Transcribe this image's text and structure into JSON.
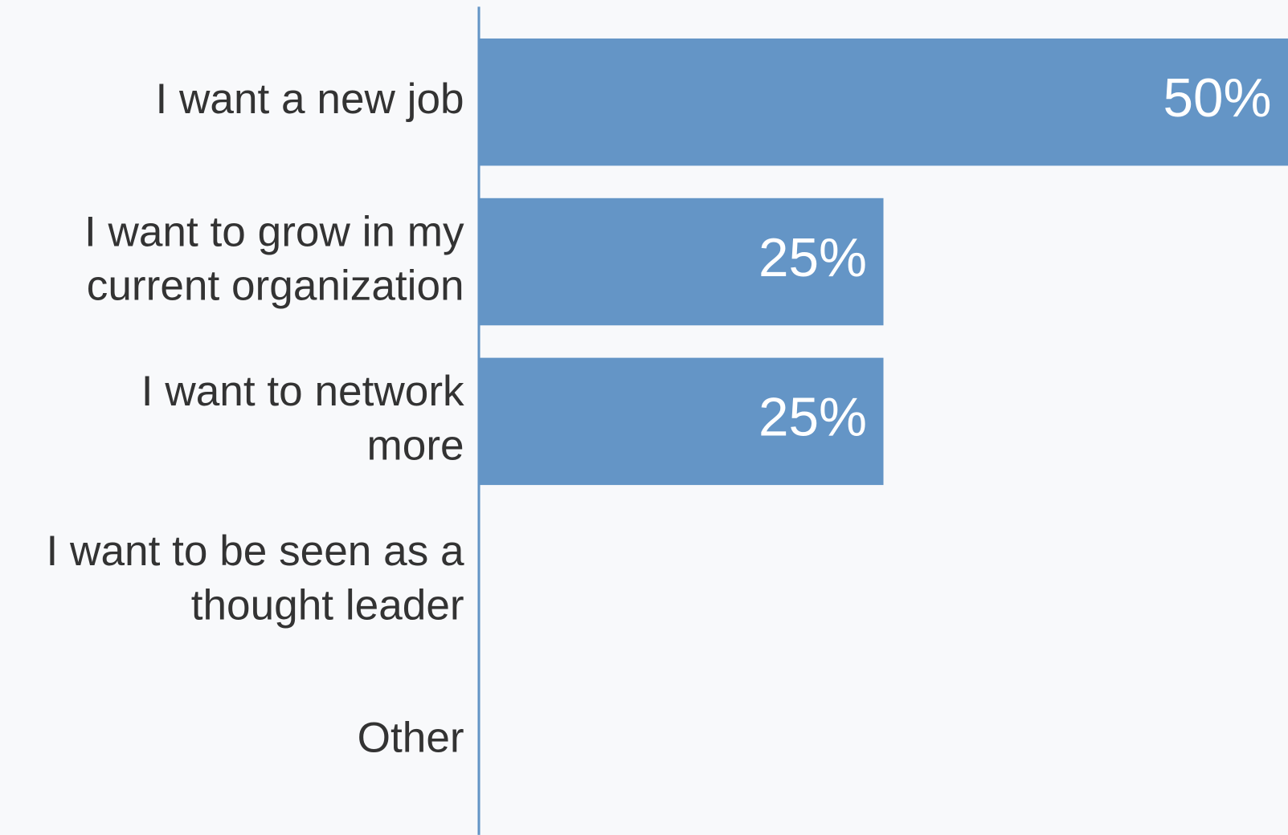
{
  "chart_data": {
    "type": "hbar",
    "categories": [
      "I want a new job",
      "I want to grow in my current organization",
      "I want to network more",
      "I want to be seen as a thought leader",
      "Other"
    ],
    "values": [
      50,
      25,
      25,
      0,
      0
    ],
    "value_labels": [
      "50%",
      "25%",
      "25%",
      null,
      null
    ],
    "color": "#6495c6",
    "xlim": [
      0,
      50
    ]
  }
}
